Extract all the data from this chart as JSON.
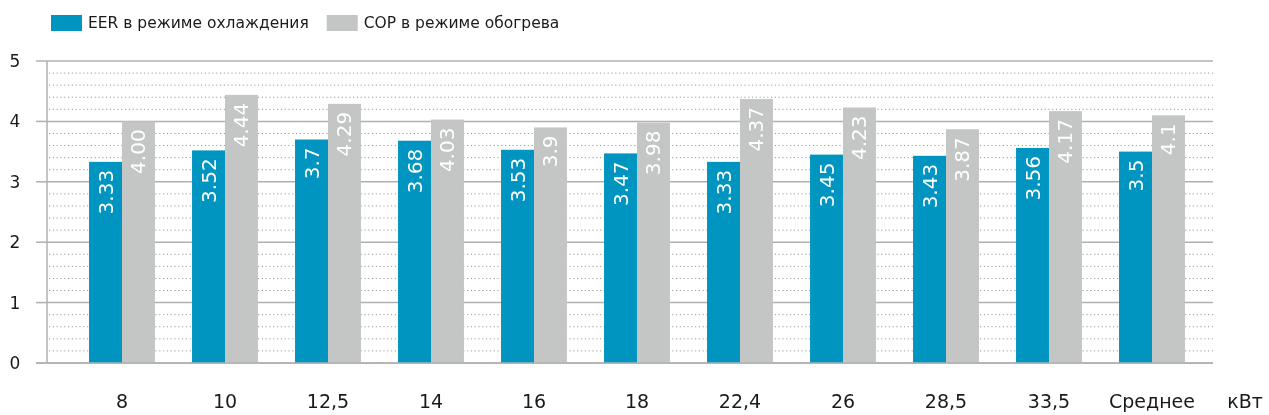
{
  "chart_data": {
    "type": "bar",
    "xlabel": "кВт",
    "legend": "top left",
    "grid": "y",
    "categories": [
      "8",
      "10",
      "12,5",
      "14",
      "16",
      "18",
      "22,4",
      "26",
      "28,5",
      "33,5",
      "Среднее"
    ],
    "series": [
      {
        "name": "EER в режиме охлаждения",
        "color": "#0095c0",
        "values": [
          3.33,
          3.52,
          3.7,
          3.68,
          3.53,
          3.47,
          3.33,
          3.45,
          3.43,
          3.56,
          3.5
        ],
        "value_labels": [
          "3.33",
          "3.52",
          "3.7",
          "3.68",
          "3.53",
          "3.47",
          "3.33",
          "3.45",
          "3.43",
          "3.56",
          "3.5"
        ]
      },
      {
        "name": "COP в режиме обогрева",
        "color": "#c4c5c5",
        "values": [
          4.0,
          4.44,
          4.29,
          4.03,
          3.9,
          3.98,
          4.37,
          4.23,
          3.87,
          4.17,
          4.1
        ],
        "value_labels": [
          "4.00",
          "4.44",
          "4.29",
          "4.03",
          "3.9",
          "3.98",
          "4.37",
          "4.23",
          "3.87",
          "4.17",
          "4.1"
        ]
      }
    ],
    "ylim": [
      0,
      5
    ],
    "yticks": [
      0,
      {
        "value": 0.2,
        "label": null
      },
      {
        "value": 0.4,
        "label": null
      },
      {
        "value": 0.6,
        "label": null
      },
      {
        "value": 0.8,
        "label": null
      },
      1,
      {
        "value": 1.2,
        "label": null
      },
      {
        "value": 1.4,
        "label": null
      },
      {
        "value": 1.6,
        "label": null
      },
      {
        "value": 1.8,
        "label": null
      },
      2,
      {
        "value": 2.2,
        "label": null
      },
      {
        "value": 2.4,
        "label": null
      },
      {
        "value": 2.6,
        "label": null
      },
      {
        "value": 2.8,
        "label": null
      },
      3,
      {
        "value": 3.2,
        "label": null
      },
      {
        "value": 3.4,
        "label": null
      },
      {
        "value": 3.6,
        "label": null
      },
      {
        "value": 3.8,
        "label": null
      },
      4,
      {
        "value": 4.2,
        "label": null
      },
      {
        "value": 4.4,
        "label": null
      },
      {
        "value": 4.6,
        "label": null
      },
      {
        "value": 4.8,
        "label": null
      },
      5
    ]
  }
}
